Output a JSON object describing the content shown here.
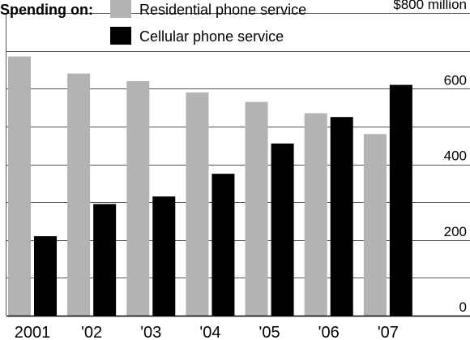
{
  "chart_data": {
    "type": "bar",
    "legend_title": "Spending on:",
    "categories": [
      "2001",
      "'02",
      "'03",
      "'04",
      "'05",
      "'06",
      "'07"
    ],
    "series": [
      {
        "name": "Residential phone service",
        "color": "#b3b3b3",
        "values": [
          685,
          640,
          620,
          590,
          565,
          535,
          480
        ]
      },
      {
        "name": "Cellular phone service",
        "color": "#000000",
        "values": [
          210,
          295,
          315,
          375,
          455,
          525,
          610
        ]
      }
    ],
    "y_ticks": [
      {
        "value": 0,
        "label": "0"
      },
      {
        "value": 200,
        "label": "200"
      },
      {
        "value": 400,
        "label": "400"
      },
      {
        "value": 600,
        "label": "600"
      },
      {
        "value": 800,
        "label": "$800 million"
      }
    ],
    "ylim": [
      0,
      800
    ],
    "grid": true,
    "legend_position": "top-left"
  }
}
